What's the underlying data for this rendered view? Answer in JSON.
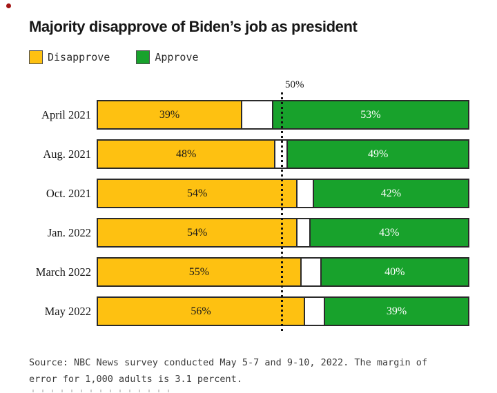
{
  "title": "Majority disapprove of Biden’s job as president",
  "legend": {
    "disapprove_label": "Disapprove",
    "approve_label": "Approve"
  },
  "gridline_label": "50%",
  "colors": {
    "disapprove": "#FEC111",
    "approve": "#18A22C",
    "bar_border": "#2A2A2A",
    "title_text": "#171717",
    "red_dot": "#A31515"
  },
  "chart_data": {
    "type": "bar",
    "orientation": "horizontal-stacked",
    "categories": [
      "April 2021",
      "Aug. 2021",
      "Oct. 2021",
      "Jan. 2022",
      "March 2022",
      "May 2022"
    ],
    "series": [
      {
        "name": "Disapprove",
        "color": "#FEC111",
        "values": [
          39,
          48,
          54,
          54,
          55,
          56
        ]
      },
      {
        "name": "Approve",
        "color": "#18A22C",
        "values": [
          53,
          49,
          42,
          43,
          40,
          39
        ]
      }
    ],
    "value_suffix": "%",
    "xlim": [
      0,
      100
    ],
    "gridline_at": 50,
    "gridline_style": "dotted",
    "legend_position": "top",
    "note": "white gap between segments = remainder to 100%"
  },
  "source": {
    "line1": "Source: NBC News survey conducted May 5-7 and 9-10, 2022. The margin of",
    "line2": "error for 1,000 adults is 3.1 percent."
  }
}
